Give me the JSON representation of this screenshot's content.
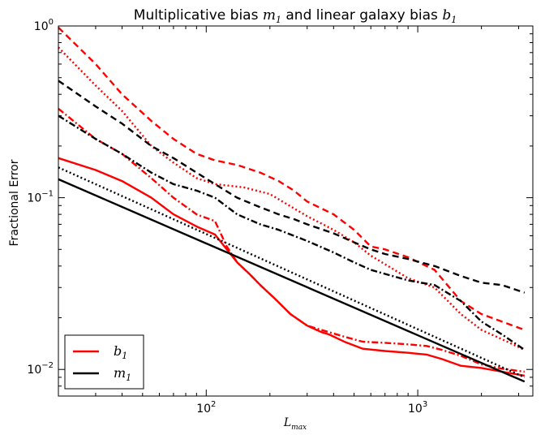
{
  "chart_data": {
    "type": "line",
    "title": {
      "prefix": "Multiplicative bias ",
      "m": "m",
      "m_sub": "1",
      "middle": " and linear galaxy bias ",
      "b": "b",
      "b_sub": "1"
    },
    "xlabel": {
      "base": "L",
      "sub": "max"
    },
    "ylabel": "Fractional Error",
    "x_scale": "log",
    "y_scale": "log",
    "xlim": [
      20,
      3500
    ],
    "ylim": [
      0.007,
      1.0
    ],
    "x_ticks": [
      {
        "value": 100,
        "base": "10",
        "exp": "2"
      },
      {
        "value": 1000,
        "base": "10",
        "exp": "3"
      }
    ],
    "y_ticks": [
      {
        "value": 0.01,
        "base": "10",
        "exp": "−2"
      },
      {
        "value": 0.1,
        "base": "10",
        "exp": "−1"
      },
      {
        "value": 1,
        "base": "10",
        "exp": "0"
      }
    ],
    "legend": {
      "placement": "lower-left",
      "entries": [
        {
          "sym": "b",
          "sub": "1",
          "color": "#ff0000"
        },
        {
          "sym": "m",
          "sub": "1",
          "color": "#000000"
        }
      ]
    },
    "series": [
      {
        "group": "b1",
        "color": "#ff0000",
        "style": "solid",
        "x": [
          20,
          30,
          40,
          55,
          70,
          90,
          110,
          125,
          140,
          160,
          180,
          210,
          250,
          300,
          350,
          380,
          450,
          550,
          700,
          900,
          1100,
          1300,
          1600,
          2000,
          2500,
          3200
        ],
        "y": [
          0.17,
          0.145,
          0.125,
          0.1,
          0.08,
          0.068,
          0.061,
          0.05,
          0.042,
          0.036,
          0.031,
          0.026,
          0.021,
          0.018,
          0.0165,
          0.016,
          0.0145,
          0.0132,
          0.0128,
          0.0125,
          0.0122,
          0.0115,
          0.0105,
          0.0102,
          0.0097,
          0.0092
        ]
      },
      {
        "group": "b1",
        "color": "#ff0000",
        "style": "dashed",
        "x": [
          20,
          30,
          40,
          55,
          70,
          90,
          110,
          140,
          180,
          220,
          260,
          300,
          400,
          500,
          600,
          700,
          900,
          1200,
          1600,
          2000,
          2500,
          3200
        ],
        "y": [
          0.98,
          0.6,
          0.4,
          0.28,
          0.22,
          0.18,
          0.165,
          0.155,
          0.14,
          0.125,
          0.11,
          0.095,
          0.08,
          0.065,
          0.052,
          0.05,
          0.045,
          0.038,
          0.025,
          0.021,
          0.019,
          0.017
        ]
      },
      {
        "group": "b1",
        "color": "#ff0000",
        "style": "dotted",
        "x": [
          20,
          30,
          40,
          55,
          70,
          90,
          110,
          150,
          200,
          300,
          400,
          500,
          600,
          700,
          900,
          1200,
          1600,
          2000,
          2500,
          3200
        ],
        "y": [
          0.75,
          0.45,
          0.32,
          0.2,
          0.16,
          0.13,
          0.12,
          0.115,
          0.105,
          0.078,
          0.065,
          0.055,
          0.046,
          0.041,
          0.034,
          0.03,
          0.021,
          0.017,
          0.015,
          0.013
        ]
      },
      {
        "group": "b1",
        "color": "#ff0000",
        "style": "dashdot",
        "x": [
          20,
          30,
          40,
          55,
          70,
          90,
          110,
          125,
          140,
          160,
          180,
          210,
          250,
          300,
          350,
          380,
          450,
          550,
          700,
          900,
          1100,
          1300,
          1600,
          2000,
          2500,
          3200
        ],
        "y": [
          0.33,
          0.22,
          0.18,
          0.13,
          0.1,
          0.08,
          0.073,
          0.052,
          0.042,
          0.036,
          0.031,
          0.026,
          0.021,
          0.018,
          0.017,
          0.0165,
          0.0155,
          0.0145,
          0.0143,
          0.014,
          0.0137,
          0.013,
          0.012,
          0.0107,
          0.0101,
          0.0097
        ]
      },
      {
        "group": "m1",
        "color": "#000000",
        "style": "solid",
        "x": [
          20,
          3200
        ],
        "y": [
          0.128,
          0.0085
        ]
      },
      {
        "group": "m1",
        "color": "#000000",
        "style": "dashed",
        "x": [
          20,
          30,
          40,
          55,
          70,
          90,
          110,
          140,
          180,
          220,
          260,
          300,
          400,
          500,
          600,
          700,
          900,
          1200,
          1600,
          2000,
          2500,
          3200
        ],
        "y": [
          0.48,
          0.34,
          0.27,
          0.2,
          0.17,
          0.14,
          0.12,
          0.1,
          0.088,
          0.08,
          0.075,
          0.07,
          0.062,
          0.055,
          0.05,
          0.047,
          0.044,
          0.04,
          0.035,
          0.032,
          0.031,
          0.028
        ]
      },
      {
        "group": "m1",
        "color": "#000000",
        "style": "dotted",
        "x": [
          20,
          3200
        ],
        "y": [
          0.15,
          0.009
        ]
      },
      {
        "group": "m1",
        "color": "#000000",
        "style": "dashdot",
        "x": [
          20,
          30,
          40,
          55,
          70,
          90,
          110,
          140,
          180,
          220,
          260,
          300,
          400,
          500,
          600,
          700,
          900,
          1200,
          1600,
          2000,
          2500,
          3200
        ],
        "y": [
          0.3,
          0.22,
          0.18,
          0.14,
          0.12,
          0.11,
          0.1,
          0.08,
          0.07,
          0.065,
          0.06,
          0.056,
          0.048,
          0.042,
          0.038,
          0.036,
          0.033,
          0.031,
          0.025,
          0.019,
          0.016,
          0.013
        ]
      }
    ]
  }
}
